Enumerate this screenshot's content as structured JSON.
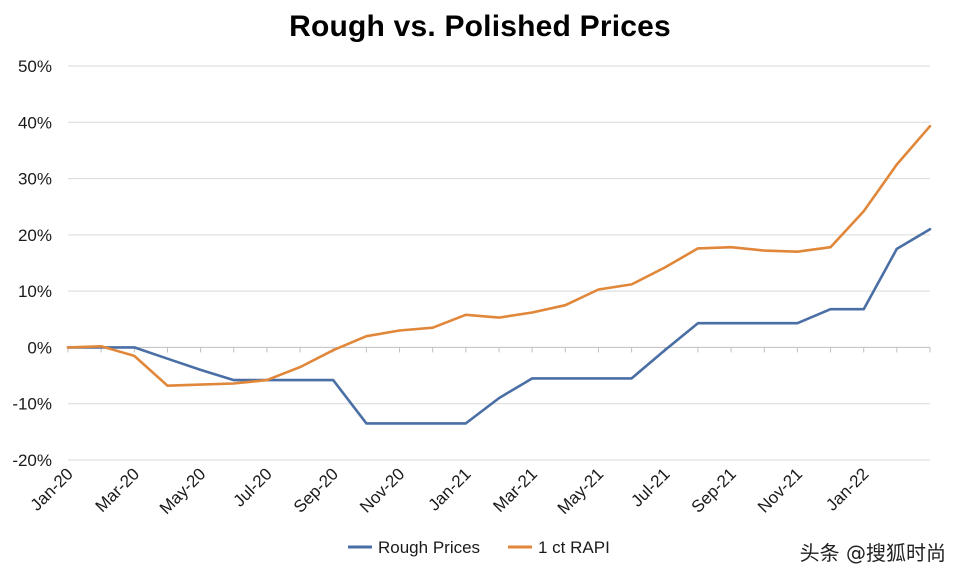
{
  "chart_data": {
    "type": "line",
    "title": "Rough vs. Polished Prices",
    "xlabel": "",
    "ylabel": "",
    "ylim": [
      -20,
      50
    ],
    "y_ticks": [
      "-20%",
      "-10%",
      "0%",
      "10%",
      "20%",
      "30%",
      "40%",
      "50%"
    ],
    "y_tick_values": [
      -20,
      -10,
      0,
      10,
      20,
      30,
      40,
      50
    ],
    "x": [
      "Jan-20",
      "Feb-20",
      "Mar-20",
      "Apr-20",
      "May-20",
      "Jun-20",
      "Jul-20",
      "Aug-20",
      "Sep-20",
      "Oct-20",
      "Nov-20",
      "Dec-20",
      "Jan-21",
      "Feb-21",
      "Mar-21",
      "Apr-21",
      "May-21",
      "Jun-21",
      "Jul-21",
      "Aug-21",
      "Sep-21",
      "Oct-21",
      "Nov-21",
      "Dec-21",
      "Jan-22",
      "Feb-22",
      "Mar-22"
    ],
    "x_tick_labels": [
      "Jan-20",
      "Mar-20",
      "May-20",
      "Jul-20",
      "Sep-20",
      "Nov-20",
      "Jan-21",
      "Mar-21",
      "May-21",
      "Jul-21",
      "Sep-21",
      "Nov-21",
      "Jan-22"
    ],
    "grid": "horizontal",
    "legend": "bottom",
    "series": [
      {
        "name": "Rough Prices",
        "color": "#4a6fa5",
        "values": [
          0,
          0,
          0,
          -2,
          -4,
          -5.8,
          -5.8,
          -5.8,
          -5.8,
          -13.5,
          -13.5,
          -13.5,
          -13.5,
          -9,
          -5.5,
          -5.5,
          -5.5,
          -5.5,
          -0.5,
          4.3,
          4.3,
          4.3,
          4.3,
          6.8,
          6.8,
          17.5,
          21
        ]
      },
      {
        "name": "1 ct RAPI",
        "color": "#e0873a",
        "values": [
          0,
          0.2,
          -1.5,
          -6.8,
          -6.6,
          -6.4,
          -5.8,
          -3.5,
          -0.5,
          2,
          3,
          3.5,
          5.8,
          5.3,
          6.2,
          7.5,
          10.3,
          11.2,
          14.2,
          17.6,
          17.8,
          17.2,
          17,
          17.8,
          24.2,
          32.5,
          39.3
        ]
      }
    ]
  },
  "watermark": "头条 @搜狐时尚"
}
